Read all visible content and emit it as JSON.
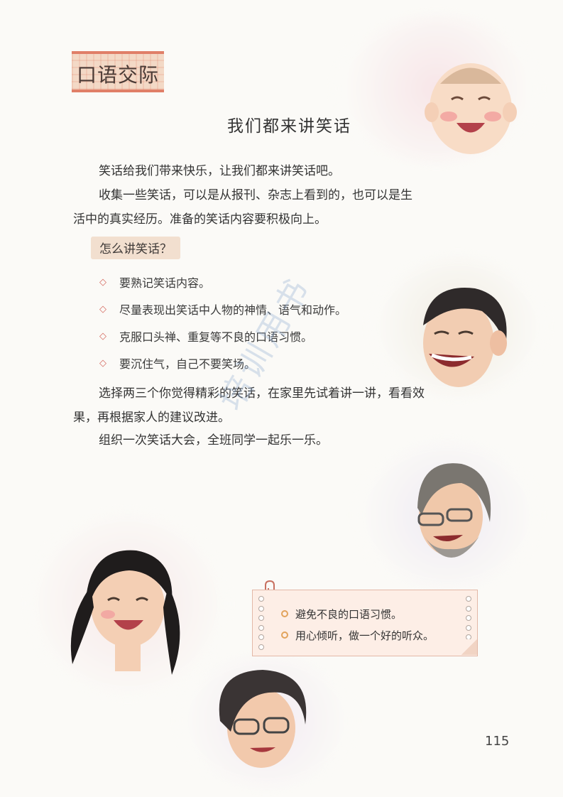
{
  "section": {
    "label": "口语交际"
  },
  "title": "我们都来讲笑话",
  "paragraphs": {
    "p1": "笑话给我们带来快乐，让我们都来讲笑话吧。",
    "p2": "收集一些笑话，可以是从报刊、杂志上看到的，也可以是生活中的真实经历。准备的笑话内容要积极向上。",
    "p3": "选择两三个你觉得精彩的笑话，在家里先试着讲一讲，看看效果，再根据家人的建议改进。",
    "p4": "组织一次笑话大会，全班同学一起乐一乐。"
  },
  "how_to": {
    "heading": "怎么讲笑话？",
    "tips": [
      "要熟记笑话内容。",
      "尽量表现出笑话中人物的神情、语气和动作。",
      "克服口头禅、重复等不良的口语习惯。",
      "要沉住气，自己不要笑场。"
    ]
  },
  "note": {
    "items": [
      "避免不良的口语习惯。",
      "用心倾听，做一个好的听众。"
    ]
  },
  "watermark": "培训用书",
  "page_number": "115",
  "colors": {
    "accent": "#e07f68",
    "diamond": "#d56a61",
    "note_bg": "#fdeee6",
    "note_bullet": "#e2a35c"
  },
  "icons": [
    "diamond-bullet-icon",
    "circle-bullet-icon",
    "paperclip-icon"
  ]
}
